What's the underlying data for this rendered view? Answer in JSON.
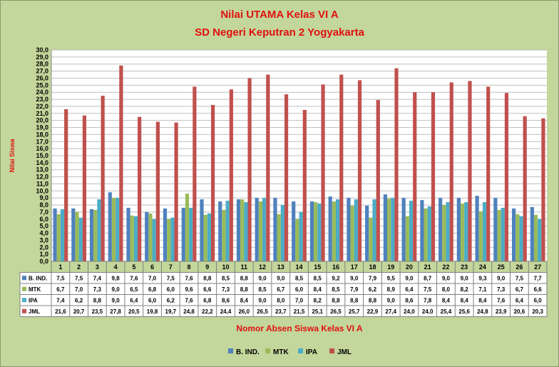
{
  "chart_data": {
    "type": "bar",
    "title": "Nilai UTAMA  Kelas VI A",
    "subtitle": "SD Negeri Keputran 2 Yogyakarta",
    "xlabel": "Nomor Absen Siswa Kelas VI A",
    "ylabel": "Nilai Siswa",
    "ylim": [
      0,
      30
    ],
    "ytick_step": 1,
    "grid": true,
    "legend_position": "bottom",
    "categories": [
      "1",
      "2",
      "3",
      "4",
      "5",
      "6",
      "7",
      "8",
      "9",
      "10",
      "11",
      "12",
      "13",
      "14",
      "15",
      "16",
      "17",
      "18",
      "19",
      "20",
      "21",
      "22",
      "23",
      "24",
      "25",
      "26",
      "27"
    ],
    "series": [
      {
        "name": "B. IND.",
        "color": "#4f81bd",
        "values": [
          7.5,
          7.5,
          7.4,
          9.8,
          7.6,
          7.0,
          7.5,
          7.6,
          8.8,
          8.5,
          8.8,
          9.0,
          9.0,
          8.5,
          8.5,
          9.2,
          9.0,
          7.9,
          9.5,
          9.0,
          8.7,
          9.0,
          9.0,
          9.3,
          9.0,
          7.5,
          7.7
        ]
      },
      {
        "name": "MTK",
        "color": "#9bbb59",
        "values": [
          6.7,
          7.0,
          7.3,
          9.0,
          6.5,
          6.8,
          6.0,
          9.6,
          6.6,
          7.3,
          8.8,
          8.5,
          6.7,
          6.0,
          8.4,
          8.5,
          7.9,
          6.2,
          8.9,
          6.4,
          7.5,
          8.0,
          8.2,
          7.1,
          7.3,
          6.7,
          6.6
        ]
      },
      {
        "name": "IPA",
        "color": "#4bacc6",
        "values": [
          7.4,
          6.2,
          8.8,
          9.0,
          6.4,
          6.0,
          6.2,
          7.6,
          6.8,
          8.6,
          8.4,
          9.0,
          8.0,
          7.0,
          8.2,
          8.8,
          8.8,
          8.8,
          9.0,
          8.6,
          7.8,
          8.4,
          8.4,
          8.4,
          7.6,
          6.4,
          6.0
        ]
      },
      {
        "name": "JML",
        "color": "#c0504d",
        "values": [
          21.6,
          20.7,
          23.5,
          27.8,
          20.5,
          19.8,
          19.7,
          24.8,
          22.2,
          24.4,
          26.0,
          26.5,
          23.7,
          21.5,
          25.1,
          26.5,
          25.7,
          22.9,
          27.4,
          24.0,
          24.0,
          25.4,
          25.6,
          24.8,
          23.9,
          20.6,
          20.3
        ]
      }
    ]
  }
}
